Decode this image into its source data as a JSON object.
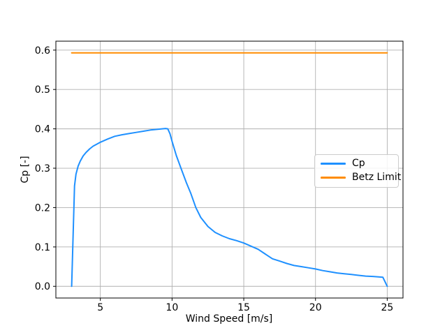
{
  "chart_data": {
    "type": "line",
    "title": "",
    "xlabel": "Wind Speed [m/s]",
    "ylabel": "Cp [-]",
    "xlim": [
      1.9,
      26.1
    ],
    "ylim": [
      -0.0297,
      0.6227
    ],
    "x_ticks": [
      5,
      10,
      15,
      20,
      25
    ],
    "x_tick_labels": [
      "5",
      "10",
      "15",
      "20",
      "25"
    ],
    "y_ticks": [
      0.0,
      0.1,
      0.2,
      0.3,
      0.4,
      0.5,
      0.6
    ],
    "y_tick_labels": [
      "0.0",
      "0.1",
      "0.2",
      "0.3",
      "0.4",
      "0.5",
      "0.6"
    ],
    "grid": true,
    "grid_color": "#b0b0b0",
    "spine_color": "#000000",
    "background_color": "#ffffff",
    "legend": {
      "position": "center-right",
      "entries": [
        "Cp",
        "Betz Limit"
      ]
    },
    "series": [
      {
        "name": "Cp",
        "color": "#1e90ff",
        "x": [
          3.0,
          3.2,
          3.3,
          3.45,
          3.6,
          3.8,
          4.0,
          4.25,
          4.5,
          4.75,
          5.0,
          5.5,
          6.0,
          6.5,
          7.0,
          7.5,
          8.0,
          8.5,
          9.0,
          9.3,
          9.55,
          9.7,
          9.85,
          10.0,
          10.3,
          10.62,
          11.0,
          11.3,
          11.66,
          12.0,
          12.5,
          13.0,
          13.5,
          14.0,
          14.5,
          15.0,
          15.5,
          16.0,
          16.5,
          17.0,
          17.5,
          18.0,
          18.5,
          19.0,
          19.5,
          20.0,
          20.5,
          21.0,
          21.5,
          22.0,
          22.5,
          23.0,
          23.5,
          24.0,
          24.4,
          24.7,
          25.0
        ],
        "y": [
          0.0,
          0.255,
          0.285,
          0.305,
          0.318,
          0.331,
          0.34,
          0.349,
          0.356,
          0.361,
          0.366,
          0.374,
          0.381,
          0.385,
          0.388,
          0.391,
          0.394,
          0.397,
          0.399,
          0.4,
          0.401,
          0.4,
          0.388,
          0.368,
          0.332,
          0.3,
          0.263,
          0.237,
          0.2,
          0.175,
          0.152,
          0.137,
          0.128,
          0.121,
          0.116,
          0.11,
          0.102,
          0.094,
          0.082,
          0.07,
          0.064,
          0.058,
          0.053,
          0.05,
          0.047,
          0.044,
          0.04,
          0.037,
          0.034,
          0.032,
          0.03,
          0.028,
          0.026,
          0.025,
          0.024,
          0.023,
          0.0
        ]
      },
      {
        "name": "Betz Limit",
        "color": "#ff8c00",
        "x": [
          3.0,
          25.0
        ],
        "y": [
          0.593,
          0.593
        ]
      }
    ]
  }
}
